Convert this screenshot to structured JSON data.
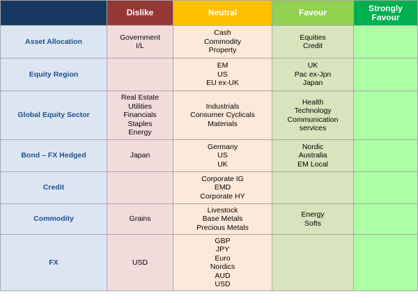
{
  "table": {
    "columns": [
      "Dislike",
      "Neutral",
      "Favour",
      "Strongly Favour"
    ],
    "rows": [
      {
        "label": "Asset Allocation",
        "cells": [
          [
            "Government",
            "I/L"
          ],
          [
            "Cash",
            "Commodity",
            "Property"
          ],
          [
            "Equities",
            "Credit"
          ],
          []
        ]
      },
      {
        "label": "Equity Region",
        "cells": [
          [],
          [
            "EM",
            "US",
            "EU ex-UK"
          ],
          [
            "UK",
            "Pac ex-Jpn",
            "Japan"
          ],
          []
        ]
      },
      {
        "label": "Global Equity Sector",
        "cells": [
          [
            "Real Estate",
            "Utilities",
            "Financials",
            "Staples",
            "Energy"
          ],
          [
            "Industrials",
            "Consumer Cyclicals",
            "Materials"
          ],
          [
            "Health",
            "Technology",
            "Communication",
            "services"
          ],
          []
        ]
      },
      {
        "label": "Bond – FX Hedged",
        "cells": [
          [
            "Japan"
          ],
          [
            "Germany",
            "US",
            "UK"
          ],
          [
            "Nordic",
            "Australia",
            "EM Local"
          ],
          []
        ]
      },
      {
        "label": "Credit",
        "cells": [
          [],
          [
            "Corporate IG",
            "EMD",
            "Corporate HY"
          ],
          [],
          []
        ]
      },
      {
        "label": "Commodity",
        "cells": [
          [
            "Grains"
          ],
          [
            "Livestock",
            "Base Metals",
            "Precious Metals"
          ],
          [
            "Energy",
            "Softs"
          ],
          []
        ]
      },
      {
        "label": "FX",
        "cells": [
          [
            "USD"
          ],
          [
            "GBP",
            "JPY",
            "Euro",
            "Nordics",
            "AUD",
            "USD"
          ],
          [],
          []
        ]
      }
    ]
  }
}
